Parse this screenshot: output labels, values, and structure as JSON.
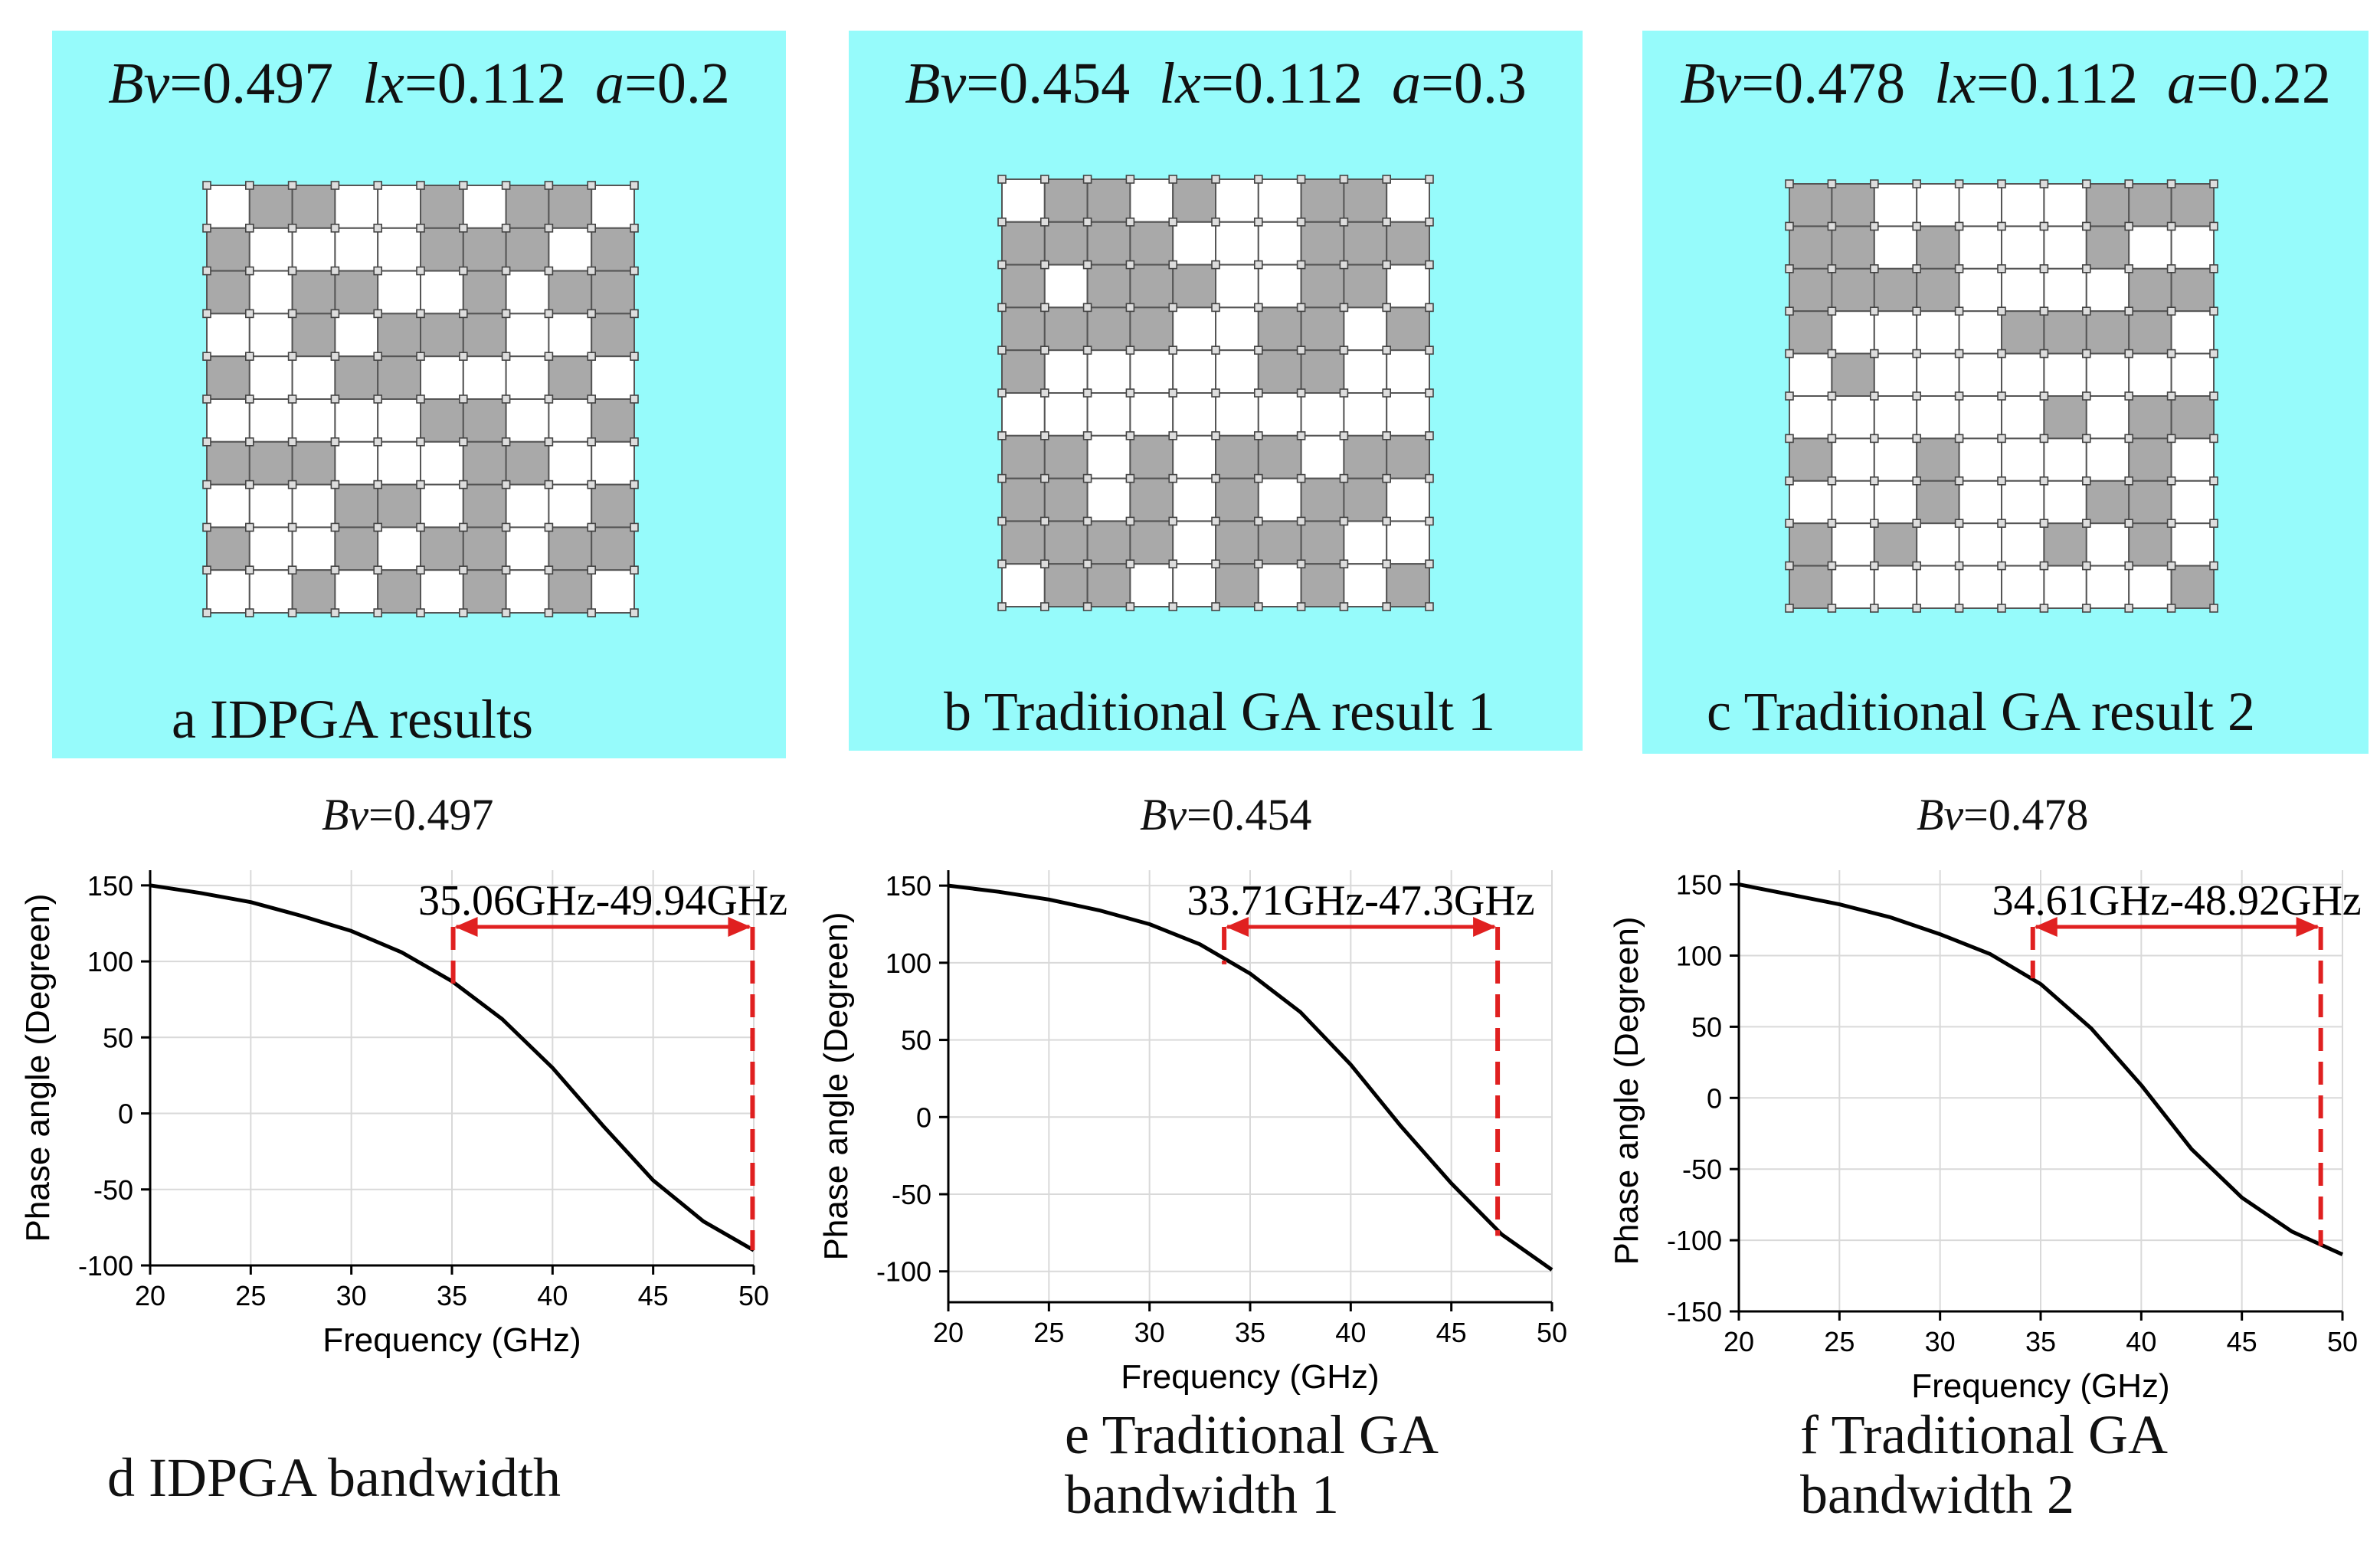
{
  "panels": [
    {
      "bv_label": "Bv",
      "bv_value": "=0.497",
      "lx_label": "lx",
      "lx_value": "=0.112",
      "a_label": "a",
      "a_value": "=0.2",
      "caption": "a IDPGA results",
      "pattern": [
        "0110010110",
        "1000011101",
        "1011001011",
        "0010111001",
        "1001100010",
        "0000011001",
        "1110001100",
        "0001101001",
        "1001011011",
        "0010101010"
      ]
    },
    {
      "bv_label": "Bv",
      "bv_value": "=0.454",
      "lx_label": "lx",
      "lx_value": "=0.112",
      "a_label": "a",
      "a_value": "=0.3",
      "caption": "b Traditional GA result 1",
      "pattern": [
        "0110100110",
        "1111000111",
        "1011100110",
        "1111001101",
        "1000001100",
        "0000000000",
        "1101011011",
        "1101010110",
        "1111011100",
        "0110010101"
      ]
    },
    {
      "bv_label": "Bv",
      "bv_value": "=0.478",
      "lx_label": "lx",
      "lx_value": "=0.112",
      "a_label": "a",
      "a_value": "=0.22",
      "caption": "c Traditional GA result 2",
      "pattern": [
        "1100000111",
        "1101000100",
        "1111000011",
        "1000011110",
        "0100000000",
        "0000001011",
        "1001000010",
        "0001000110",
        "1010001010",
        "1000000001"
      ]
    }
  ],
  "chart_data": [
    {
      "type": "line",
      "title": "Bv=0.497",
      "title_var": "Bv",
      "title_value": "=0.497",
      "xlabel": "Frequency (GHz)",
      "ylabel": "Phase angle (Degreen)",
      "xlim": [
        20,
        50
      ],
      "ylim": [
        -100,
        160
      ],
      "xticks": [
        20,
        25,
        30,
        35,
        40,
        45,
        50
      ],
      "yticks": [
        -100,
        -50,
        0,
        50,
        100,
        150
      ],
      "grid": true,
      "series": [
        {
          "name": "Phase angle",
          "x": [
            20,
            22.5,
            25,
            27.5,
            30,
            32.5,
            35,
            37.5,
            40,
            42.5,
            45,
            47.5,
            50
          ],
          "y": [
            150,
            145,
            139,
            130,
            120,
            106,
            87,
            62,
            30,
            -8,
            -44,
            -71,
            -90
          ]
        }
      ],
      "band": {
        "low": 35.06,
        "high": 49.94,
        "low_y": 85,
        "high_y": -90,
        "label": "35.06GHz-49.94GHz"
      },
      "caption": "d IDPGA bandwidth"
    },
    {
      "type": "line",
      "title": "Bv=0.454",
      "title_var": "Bv",
      "title_value": "=0.454",
      "xlabel": "Frequency (GHz)",
      "ylabel": "Phase angle (Degreen)",
      "xlim": [
        20,
        50
      ],
      "ylim": [
        -120,
        160
      ],
      "xticks": [
        20,
        25,
        30,
        35,
        40,
        45,
        50
      ],
      "yticks": [
        -100,
        -50,
        0,
        50,
        100,
        150
      ],
      "grid": true,
      "series": [
        {
          "name": "Phase angle",
          "x": [
            20,
            22.5,
            25,
            27.5,
            30,
            32.5,
            35,
            37.5,
            40,
            42.5,
            45,
            47.5,
            50
          ],
          "y": [
            150,
            146,
            141,
            134,
            125,
            112,
            93,
            68,
            34,
            -6,
            -43,
            -76,
            -99
          ]
        }
      ],
      "band": {
        "low": 33.71,
        "high": 47.3,
        "low_y": 99,
        "high_y": -77,
        "label": "33.71GHz-47.3GHz"
      },
      "caption": "e Traditional GA bandwidth 1"
    },
    {
      "type": "line",
      "title": "Bv=0.478",
      "title_var": "Bv",
      "title_value": "=0.478",
      "xlabel": "Frequency (GHz)",
      "ylabel": "Phase angle (Degreen)",
      "xlim": [
        20,
        50
      ],
      "ylim": [
        -150,
        160
      ],
      "xticks": [
        20,
        25,
        30,
        35,
        40,
        45,
        50
      ],
      "yticks": [
        -150,
        -100,
        -50,
        0,
        50,
        100,
        150
      ],
      "grid": true,
      "series": [
        {
          "name": "Phase angle",
          "x": [
            20,
            22.5,
            25,
            27.5,
            30,
            32.5,
            35,
            37.5,
            40,
            42.5,
            45,
            47.5,
            50
          ],
          "y": [
            150,
            143,
            136,
            127,
            115,
            101,
            80,
            49,
            9,
            -36,
            -70,
            -94,
            -110
          ]
        }
      ],
      "band": {
        "low": 34.61,
        "high": 48.92,
        "low_y": 84,
        "high_y": -104,
        "label": "34.61GHz-48.92GHz"
      },
      "caption": "f Traditional GA bandwidth 2"
    }
  ],
  "colors": {
    "panel_bg": "#96fbfb",
    "cell_fill": "#a9a9a9",
    "cell_empty": "#ffffff",
    "curve": "#000000",
    "band": "#e02020",
    "grid": "#d9d9d9"
  }
}
